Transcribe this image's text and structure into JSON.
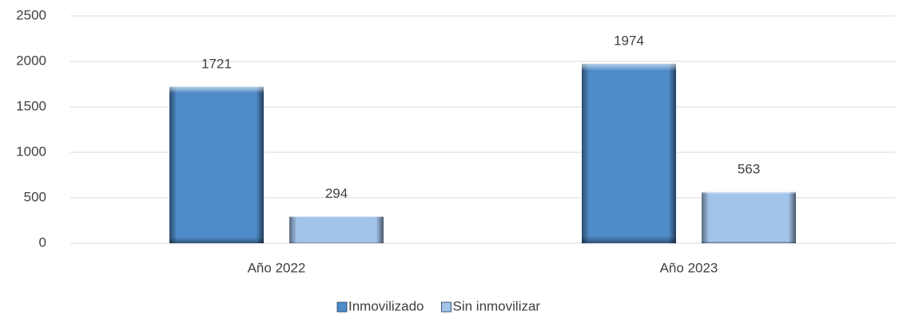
{
  "chart_data": {
    "type": "bar",
    "categories": [
      "Año 2022",
      "Año 2023"
    ],
    "series": [
      {
        "name": "Inmovilizado",
        "color": "#4f8bc9",
        "values": [
          1721,
          1974
        ]
      },
      {
        "name": "Sin inmovilizar",
        "color": "#a3c4ea",
        "values": [
          294,
          563
        ]
      }
    ],
    "ylim": [
      0,
      2500
    ],
    "yticks": [
      0,
      500,
      1000,
      1500,
      2000,
      2500
    ],
    "grid": true,
    "legend": "bottom"
  }
}
